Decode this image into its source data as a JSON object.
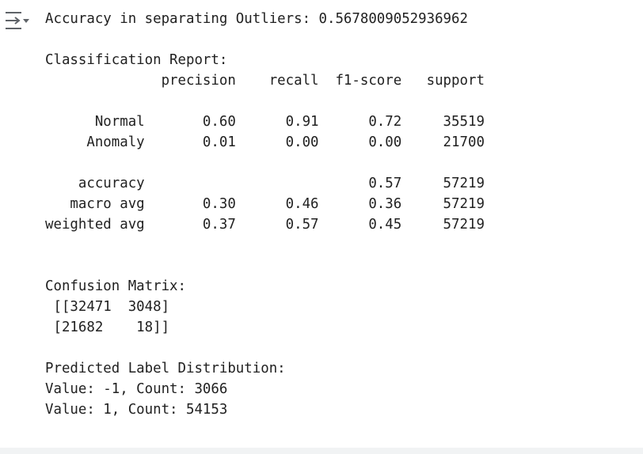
{
  "toggle": {
    "icon": "output-collapse-icon"
  },
  "output": {
    "lines": [
      "Accuracy in separating Outliers: 0.5678009052936962",
      "",
      "Classification Report:",
      "              precision    recall  f1-score   support",
      "",
      "      Normal       0.60      0.91      0.72     35519",
      "     Anomaly       0.01      0.00      0.00     21700",
      "",
      "    accuracy                           0.57     57219",
      "   macro avg       0.30      0.46      0.36     57219",
      "weighted avg       0.37      0.57      0.45     57219",
      "",
      "",
      "Confusion Matrix:",
      " [[32471  3048]",
      " [21682    18]]",
      "",
      "Predicted Label Distribution:",
      "Value: -1, Count: 3066",
      "Value: 1, Count: 54153"
    ]
  }
}
